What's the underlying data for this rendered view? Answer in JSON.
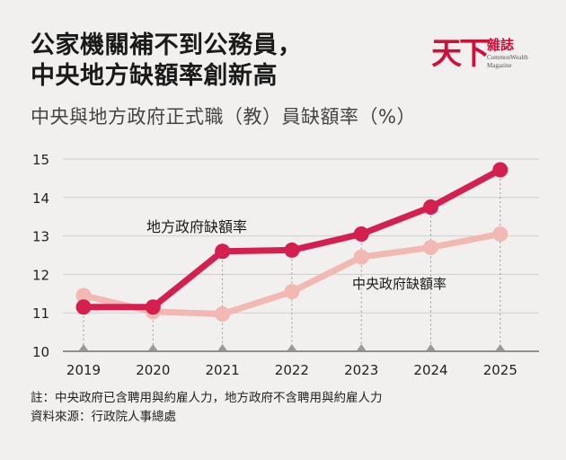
{
  "title_lines": [
    "公家機關補不到公務員，",
    "中央地方缺額率創新高"
  ],
  "subtitle": "中央與地方政府正式職（教）員缺額率（%）",
  "logo": {
    "main": "天下",
    "side": "雜誌",
    "en_line1": "CommonWealth",
    "en_line2": "Magazine"
  },
  "colors": {
    "local": "#d41f4f",
    "central": "#f2b8b3",
    "marker": "#999999"
  },
  "chart_data": {
    "type": "line",
    "x": [
      "2019",
      "2020",
      "2021",
      "2022",
      "2023",
      "2024",
      "2025"
    ],
    "ylim": [
      10,
      15
    ],
    "yticks": [
      "10",
      "11",
      "12",
      "13",
      "14",
      "15"
    ],
    "grid": true,
    "series": [
      {
        "name": "地方政府缺額率",
        "values": [
          11.15,
          11.15,
          12.6,
          12.63,
          13.05,
          13.75,
          14.72
        ]
      },
      {
        "name": "中央政府缺額率",
        "values": [
          11.45,
          11.03,
          10.97,
          11.55,
          12.45,
          12.7,
          13.05
        ]
      }
    ]
  },
  "notes": [
    "註：中央政府已含聘用與約雇人力，地方政府不含聘用與約雇人力",
    "資料來源：行政院人事總處"
  ]
}
